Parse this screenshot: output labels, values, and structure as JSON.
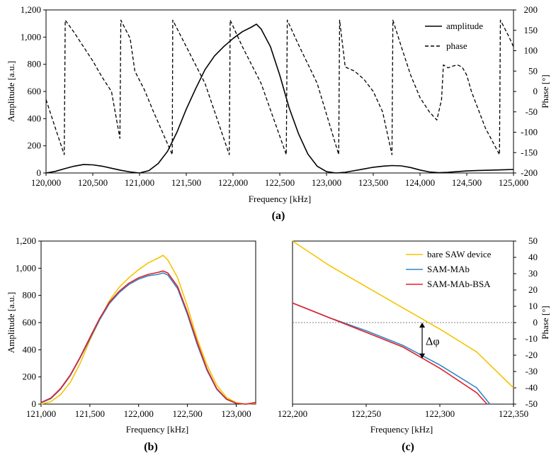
{
  "colors": {
    "bare": "#f5c400",
    "sam_mab": "#2f88c8",
    "sam_mab_bsa": "#e0202a",
    "black": "#000000"
  },
  "chart_data": [
    {
      "panel": "a",
      "panel_label": "(a)",
      "type": "line",
      "xlabel": "Frequency  [kHz]",
      "ylabel": "Amplitude  [a.u.]",
      "y2label": "Phase  [°]",
      "xlim": [
        120000,
        125000
      ],
      "ylim": [
        0,
        1200
      ],
      "y2lim": [
        -200,
        200
      ],
      "x_ticks": [
        "120,000",
        "120,500",
        "121,000",
        "121,500",
        "122,000",
        "122,500",
        "123,000",
        "123,500",
        "124,000",
        "124,500",
        "125,000"
      ],
      "y_ticks": [
        "0",
        "200",
        "400",
        "600",
        "800",
        "1,000",
        "1,200"
      ],
      "y2_ticks": [
        "-200",
        "-150",
        "-100",
        "-50",
        "0",
        "50",
        "100",
        "150",
        "200"
      ],
      "legend": [
        "amplitude",
        "phase"
      ],
      "series": [
        {
          "name": "amplitude",
          "axis": "left",
          "style": "solid",
          "x": [
            120000,
            120100,
            120200,
            120300,
            120400,
            120500,
            120600,
            120700,
            120800,
            120900,
            121000,
            121100,
            121200,
            121300,
            121400,
            121500,
            121600,
            121700,
            121800,
            121900,
            122000,
            122100,
            122200,
            122250,
            122300,
            122400,
            122500,
            122600,
            122700,
            122800,
            122900,
            123000,
            123100,
            123200,
            123300,
            123400,
            123500,
            123600,
            123700,
            123800,
            123900,
            124000,
            124100,
            124200,
            124300,
            124400,
            124500,
            124600,
            124700,
            124800,
            124900,
            125000
          ],
          "y": [
            0,
            12,
            32,
            50,
            62,
            60,
            50,
            35,
            20,
            8,
            0,
            18,
            70,
            160,
            300,
            470,
            620,
            760,
            860,
            930,
            990,
            1040,
            1075,
            1095,
            1060,
            930,
            720,
            480,
            290,
            140,
            50,
            10,
            0,
            5,
            18,
            30,
            42,
            50,
            55,
            52,
            40,
            22,
            8,
            2,
            5,
            10,
            15,
            18,
            20,
            22,
            24,
            26
          ]
        },
        {
          "name": "phase",
          "axis": "right",
          "style": "dashed",
          "x": [
            120000,
            120100,
            120195,
            120205,
            120300,
            120400,
            120500,
            120600,
            120700,
            120790,
            120800,
            120900,
            120950,
            121050,
            121150,
            121350,
            121355,
            121500,
            121700,
            121960,
            121970,
            122100,
            122300,
            122570,
            122580,
            122700,
            122900,
            123130,
            123140,
            123200,
            123250,
            123300,
            123400,
            123500,
            123600,
            123700,
            123710,
            123800,
            123900,
            124000,
            124100,
            124180,
            124230,
            124250,
            124300,
            124350,
            124400,
            124450,
            124500,
            124550,
            124600,
            124700,
            124850,
            124860,
            124950,
            125000
          ],
          "y": [
            -20,
            -90,
            -155,
            175,
            145,
            110,
            75,
            35,
            0,
            -115,
            175,
            130,
            50,
            5,
            -50,
            -155,
            175,
            110,
            20,
            -155,
            175,
            110,
            20,
            -155,
            175,
            115,
            20,
            -155,
            175,
            60,
            55,
            50,
            30,
            0,
            -50,
            -155,
            175,
            110,
            40,
            -15,
            -50,
            -70,
            -20,
            65,
            58,
            62,
            65,
            60,
            40,
            0,
            -30,
            -90,
            -155,
            175,
            135,
            110
          ]
        }
      ]
    },
    {
      "panel": "b",
      "panel_label": "(b)",
      "type": "line",
      "xlabel": "Frequency  [kHz]",
      "ylabel": "Amplitude  [a.u.]",
      "xlim": [
        121000,
        123200
      ],
      "ylim": [
        0,
        1200
      ],
      "x_ticks": [
        "121,000",
        "121,500",
        "122,000",
        "122,500",
        "123,000"
      ],
      "y_ticks": [
        "0",
        "200",
        "400",
        "600",
        "800",
        "1,000",
        "1,200"
      ],
      "series": [
        {
          "name": "bare SAW device",
          "color_key": "bare",
          "x": [
            121000,
            121100,
            121200,
            121300,
            121400,
            121500,
            121600,
            121700,
            121800,
            121900,
            122000,
            122100,
            122200,
            122250,
            122300,
            122400,
            122500,
            122600,
            122700,
            122800,
            122900,
            123000,
            123100,
            123200
          ],
          "y": [
            0,
            18,
            70,
            160,
            300,
            470,
            620,
            760,
            860,
            930,
            990,
            1040,
            1075,
            1095,
            1060,
            930,
            720,
            480,
            290,
            140,
            50,
            10,
            0,
            5
          ]
        },
        {
          "name": "SAM-MAb",
          "color_key": "sam_mab",
          "x": [
            121000,
            121100,
            121200,
            121300,
            121400,
            121500,
            121600,
            121700,
            121800,
            121900,
            122000,
            122100,
            122200,
            122250,
            122300,
            122400,
            122500,
            122600,
            122700,
            122800,
            122900,
            123000,
            123100,
            123200
          ],
          "y": [
            10,
            40,
            110,
            210,
            340,
            480,
            620,
            740,
            820,
            880,
            920,
            945,
            955,
            965,
            950,
            850,
            660,
            440,
            250,
            110,
            35,
            5,
            0,
            10
          ]
        },
        {
          "name": "SAM-MAb-BSA",
          "color_key": "sam_mab_bsa",
          "x": [
            121000,
            121100,
            121200,
            121300,
            121400,
            121500,
            121600,
            121700,
            121800,
            121900,
            122000,
            122100,
            122200,
            122250,
            122300,
            122400,
            122500,
            122600,
            122700,
            122800,
            122900,
            123000,
            123100,
            123200
          ],
          "y": [
            12,
            45,
            115,
            215,
            345,
            490,
            630,
            750,
            830,
            890,
            930,
            955,
            970,
            980,
            965,
            865,
            675,
            455,
            260,
            115,
            38,
            6,
            0,
            12
          ]
        }
      ]
    },
    {
      "panel": "c",
      "panel_label": "(c)",
      "type": "line",
      "xlabel": "Frequency  [kHz]",
      "ylabel": "Phase  [°]",
      "xlim": [
        122200,
        122350
      ],
      "ylim": [
        -50,
        50
      ],
      "x_ticks": [
        "122,200",
        "122,250",
        "122,300",
        "122,350"
      ],
      "y_ticks": [
        "-50",
        "-40",
        "-30",
        "-20",
        "-10",
        "0",
        "10",
        "20",
        "30",
        "40",
        "50"
      ],
      "reference_line": 0,
      "annotation": "Δφ",
      "annotation_x": 122288,
      "annotation_from": 0,
      "annotation_to": -22,
      "legend": [
        "bare SAW device",
        "SAM-MAb",
        "SAM-MAb-BSA"
      ],
      "series": [
        {
          "name": "bare SAW device",
          "color_key": "bare",
          "x": [
            122200,
            122225,
            122250,
            122275,
            122300,
            122325,
            122350
          ],
          "y": [
            50,
            35,
            22,
            9,
            -4,
            -18,
            -40
          ]
        },
        {
          "name": "SAM-MAb",
          "color_key": "sam_mab",
          "x": [
            122200,
            122225,
            122250,
            122275,
            122300,
            122325,
            122334
          ],
          "y": [
            12,
            3,
            -5,
            -14,
            -26,
            -40,
            -50
          ]
        },
        {
          "name": "SAM-MAb-BSA",
          "color_key": "sam_mab_bsa",
          "x": [
            122200,
            122225,
            122250,
            122275,
            122300,
            122325,
            122332
          ],
          "y": [
            12,
            3,
            -6,
            -15,
            -28,
            -43,
            -50
          ]
        }
      ]
    }
  ]
}
